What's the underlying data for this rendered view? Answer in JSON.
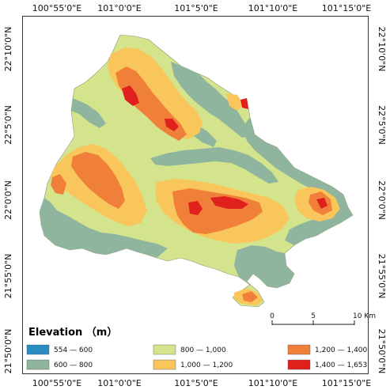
{
  "map": {
    "lon_labels": [
      "100°55'0\"E",
      "101°0'0\"E",
      "101°5'0\"E",
      "101°10'0\"E",
      "101°15'0\"E"
    ],
    "lat_labels": [
      "22°10'0\"N",
      "22°5'0\"N",
      "22°0'0\"N",
      "21°55'0\"N",
      "21°50'0\"N"
    ],
    "colors": {
      "c554_600": "#2b8cc4",
      "c600_800": "#8fb59e",
      "c800_1000": "#d4e48c",
      "c1000_1200": "#f8c65a",
      "c1200_1400": "#f07f3a",
      "c1400_1653": "#e0201c",
      "frame": "#333333",
      "background": "#ffffff"
    }
  },
  "legend": {
    "title": "Elevation （m）",
    "items": [
      {
        "label": "554 — 600",
        "color": "#2b8cc4"
      },
      {
        "label": "600 — 800",
        "color": "#8fb59e"
      },
      {
        "label": "800 — 1,000",
        "color": "#d4e48c"
      },
      {
        "label": "1,000 — 1,200",
        "color": "#f8c65a"
      },
      {
        "label": "1,200 — 1,400",
        "color": "#f07f3a"
      },
      {
        "label": "1,400 — 1,653",
        "color": "#e0201c"
      }
    ]
  },
  "scale_bar": {
    "labels": [
      "0",
      "5",
      "10 Km"
    ]
  }
}
